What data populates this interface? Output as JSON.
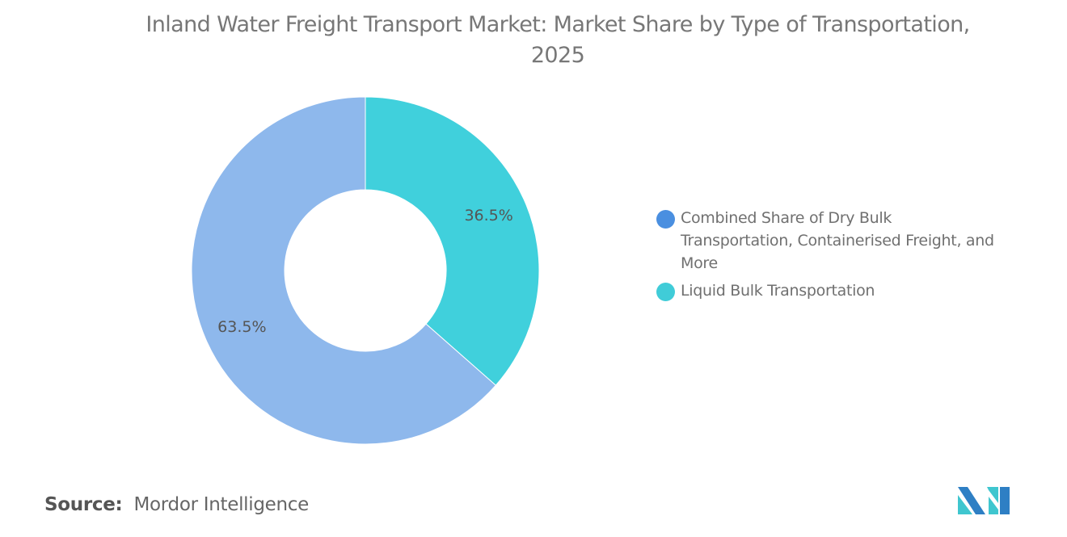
{
  "chart_data": {
    "type": "pie",
    "title": "Inland Water Freight Transport Market: Market Share by Type of Transportation, 2025",
    "slices": [
      {
        "label": "Liquid Bulk Transportation",
        "value": 36.5,
        "display": "36.5%",
        "color": "#40d0dc",
        "legend_color": "#40ccd8"
      },
      {
        "label": "Combined Share of Dry Bulk Transportation, Containerised Freight, and More",
        "value": 63.5,
        "display": "63.5%",
        "color": "#8eb8ec",
        "legend_color": "#4a8fe0"
      }
    ],
    "donut": true,
    "legend_position": "right",
    "legend_order": [
      1,
      0
    ]
  },
  "source": {
    "label": "Source:",
    "value": "Mordor Intelligence"
  },
  "logo": {
    "text": "Mordor Intelligence",
    "colors": [
      "#2e7fc4",
      "#3fc6cf"
    ]
  }
}
